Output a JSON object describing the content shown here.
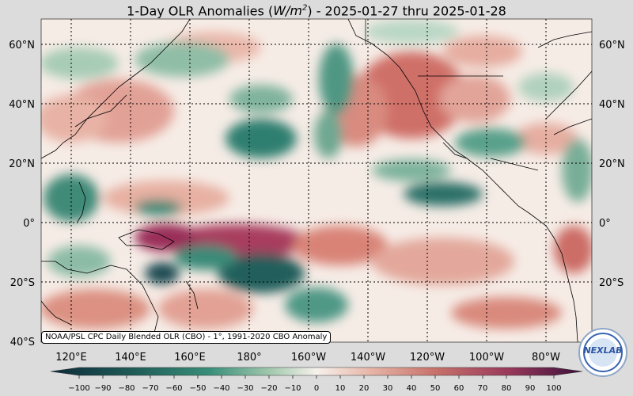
{
  "title": {
    "prefix": "1-Day OLR Anomalies (",
    "unit_base": "W/m",
    "unit_exp": "2",
    "suffix": ") - 2025-01-27 thru 2025-01-28"
  },
  "source_note": "NOAA/PSL CPC Daily Blended OLR (CBO) - 1°, 1991-2020 CBO Anomaly",
  "logo_text": "NEXLAB",
  "colors": {
    "negative_strong": "#1f5a56",
    "negative": "#3a8f7a",
    "neutral": "#f6f1ec",
    "positive": "#cf7f70",
    "positive_strong": "#7a1f55",
    "land_outline": "#000000",
    "grid": "#000000"
  },
  "map": {
    "lon_range": [
      "110°E",
      "70°W"
    ],
    "lat_range": [
      "40°S",
      "67°N"
    ],
    "grid_style": "dotted"
  },
  "lat_labels": [
    "60°N",
    "40°N",
    "20°N",
    "0°",
    "20°S",
    "40°S"
  ],
  "lon_labels": [
    "120°E",
    "140°E",
    "160°E",
    "180°",
    "160°W",
    "140°W",
    "120°W",
    "100°W",
    "80°W"
  ],
  "colorbar": {
    "min": -100,
    "max": 100,
    "step": 10,
    "ticks": [
      "−100",
      "−90",
      "−80",
      "−70",
      "−60",
      "−50",
      "−40",
      "−30",
      "−20",
      "−10",
      "0",
      "10",
      "20",
      "30",
      "40",
      "50",
      "60",
      "70",
      "80",
      "90",
      "100"
    ],
    "extend": "both"
  }
}
